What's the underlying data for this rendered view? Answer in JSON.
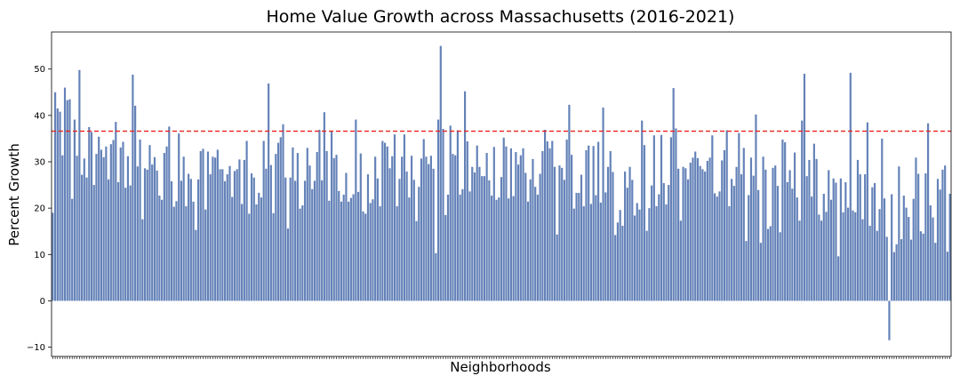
{
  "chart_data": {
    "type": "bar",
    "title": "Home Value Growth across Massachusetts (2016-2021)",
    "xlabel": "Neighborhoods",
    "ylabel": "Percent Growth",
    "ylim": [
      -12,
      58
    ],
    "yticks": [
      -10,
      0,
      10,
      20,
      30,
      40,
      50
    ],
    "ytick_labels": [
      "−10",
      "0",
      "10",
      "20",
      "30",
      "40",
      "50"
    ],
    "x_tick_labels_visible": false,
    "reference_line": {
      "value": 36.6,
      "color": "#e8231e",
      "style": "dashed"
    },
    "bar_color": "#6482b8",
    "grid": false,
    "values": [
      19.0,
      45.0,
      41.5,
      40.8,
      31.4,
      46.0,
      43.3,
      43.5,
      22.0,
      39.1,
      31.3,
      49.8,
      27.2,
      30.7,
      26.6,
      37.5,
      36.4,
      25.0,
      31.7,
      35.4,
      32.6,
      31.0,
      33.3,
      26.2,
      33.8,
      34.7,
      38.6,
      25.6,
      33.1,
      34.3,
      24.4,
      31.2,
      24.9,
      48.8,
      42.1,
      29.0,
      34.8,
      17.6,
      28.6,
      28.3,
      33.6,
      29.4,
      31.0,
      28.1,
      22.7,
      21.8,
      31.9,
      33.3,
      37.6,
      25.8,
      20.3,
      21.5,
      36.1,
      25.9,
      31.1,
      20.4,
      27.4,
      26.3,
      21.4,
      15.3,
      26.2,
      32.3,
      32.8,
      19.7,
      32.2,
      27.3,
      31.1,
      30.9,
      32.6,
      28.4,
      28.4,
      25.8,
      27.3,
      29.1,
      22.4,
      28.0,
      28.4,
      30.5,
      20.9,
      30.4,
      34.5,
      18.8,
      27.5,
      26.6,
      20.8,
      23.3,
      22.3,
      34.5,
      28.5,
      46.9,
      29.3,
      18.9,
      31.7,
      34.1,
      35.3,
      38.1,
      26.6,
      15.6,
      26.6,
      33.1,
      25.9,
      31.9,
      19.9,
      20.6,
      25.9,
      33.0,
      29.2,
      24.1,
      25.9,
      32.1,
      36.9,
      26.0,
      40.7,
      32.3,
      21.6,
      36.5,
      30.8,
      31.5,
      23.7,
      21.4,
      22.9,
      27.6,
      21.4,
      22.2,
      23.0,
      39.1,
      23.5,
      31.8,
      19.3,
      18.8,
      27.3,
      21.1,
      21.9,
      31.1,
      26.4,
      20.4,
      34.5,
      34.1,
      33.3,
      28.6,
      31.2,
      35.9,
      20.4,
      26.3,
      31.1,
      35.9,
      27.9,
      22.3,
      31.3,
      26.1,
      17.2,
      24.6,
      30.7,
      34.9,
      31.1,
      29.5,
      31.3,
      28.5,
      10.3,
      39.1,
      55.0,
      37.1,
      18.5,
      22.9,
      37.8,
      31.7,
      31.4,
      36.8,
      22.9,
      24.1,
      45.2,
      34.4,
      23.6,
      28.9,
      27.7,
      33.5,
      28.9,
      26.9,
      26.9,
      31.9,
      26.0,
      22.7,
      33.2,
      21.8,
      22.3,
      26.7,
      35.2,
      33.3,
      22.1,
      32.9,
      22.6,
      32.1,
      29.4,
      31.4,
      32.9,
      27.6,
      21.4,
      26.2,
      30.6,
      24.6,
      22.9,
      27.4,
      32.3,
      36.9,
      34.4,
      32.9,
      34.5,
      28.9,
      14.3,
      29.2,
      28.7,
      26.1,
      34.8,
      42.3,
      31.5,
      19.9,
      23.3,
      23.3,
      27.2,
      20.4,
      32.5,
      33.5,
      20.9,
      33.4,
      22.8,
      34.3,
      21.2,
      41.7,
      23.4,
      28.9,
      32.3,
      27.8,
      14.2,
      16.9,
      19.6,
      16.2,
      27.9,
      24.4,
      28.9,
      26.1,
      18.4,
      21.1,
      19.7,
      38.9,
      33.6,
      15.1,
      20.0,
      24.9,
      35.7,
      20.4,
      23.0,
      35.8,
      25.4,
      20.8,
      25.0,
      35.3,
      45.9,
      37.2,
      28.5,
      17.3,
      28.9,
      28.6,
      26.2,
      29.8,
      30.9,
      32.2,
      30.8,
      29.1,
      28.4,
      27.9,
      30.2,
      30.9,
      35.7,
      23.2,
      22.5,
      23.6,
      30.3,
      32.5,
      36.8,
      20.4,
      26.3,
      24.8,
      28.9,
      36.2,
      27.3,
      33.0,
      12.9,
      22.8,
      30.9,
      27.0,
      40.2,
      23.9,
      12.5,
      31.1,
      28.3,
      15.5,
      16.1,
      28.7,
      29.2,
      24.8,
      14.8,
      34.8,
      34.2,
      25.6,
      28.2,
      24.2,
      32.0,
      22.3,
      17.3,
      38.9,
      49.0,
      26.9,
      30.4,
      22.5,
      33.9,
      30.6,
      18.6,
      17.3,
      23.1,
      19.2,
      28.2,
      21.8,
      26.4,
      25.5,
      9.6,
      26.4,
      19.1,
      25.6,
      20.1,
      49.2,
      19.5,
      19.1,
      30.4,
      27.3,
      17.6,
      27.3,
      38.5,
      16.2,
      24.5,
      25.4,
      15.1,
      19.8,
      35.0,
      22.1,
      13.8,
      -8.5,
      23.0,
      10.5,
      12.2,
      29.0,
      13.3,
      22.7,
      20.1,
      18.1,
      13.2,
      22.0,
      30.9,
      27.4,
      15.0,
      14.5,
      27.5,
      38.3,
      20.6,
      18.0,
      12.5,
      26.3,
      24.0,
      28.3,
      29.2,
      10.6,
      23.1
    ]
  }
}
